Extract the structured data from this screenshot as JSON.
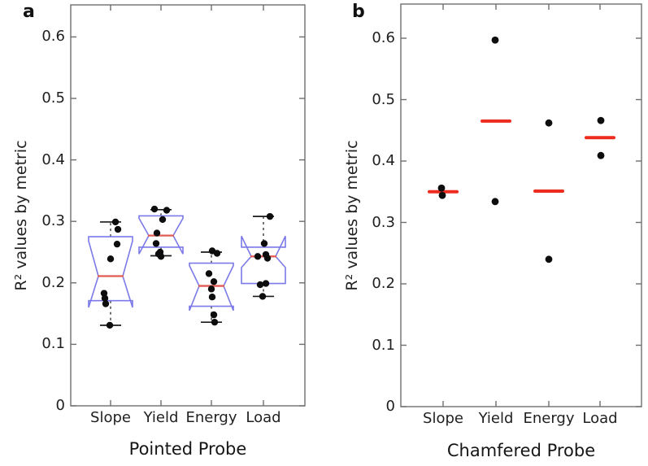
{
  "figure": {
    "background": "#ffffff"
  },
  "colors": {
    "axis": "#6e6e6e",
    "box_outline": "#7b7ae8",
    "box_median": "#e05c55",
    "scatter_median": "#ee2b1f",
    "data_point": "#0d0d0d",
    "text": "#1f1f1f"
  },
  "chart_data": [
    {
      "panel_label": "a",
      "type": "box",
      "title": "Pointed Probe",
      "ylabel": "R² values by metric",
      "ylim": [
        0,
        0.65
      ],
      "grid": false,
      "yticks": [
        0,
        0.1,
        0.2,
        0.3,
        0.4,
        0.5,
        0.6
      ],
      "ytick_labels": [
        "0",
        "0.1",
        "0.2",
        "0.3",
        "0.4",
        "0.5",
        "0.6"
      ],
      "categories": [
        "Slope",
        "Yield",
        "Energy",
        "Load"
      ],
      "boxes": [
        {
          "category": "Slope",
          "q1": 0.171,
          "median": 0.211,
          "q3": 0.275,
          "notch_lo": 0.16,
          "notch_hi": 0.268,
          "whisker_lo": 0.131,
          "whisker_hi": 0.299,
          "points": [
            {
              "v": 0.299,
              "dx": 6
            },
            {
              "v": 0.287,
              "dx": 9
            },
            {
              "v": 0.263,
              "dx": 8
            },
            {
              "v": 0.239,
              "dx": 0
            },
            {
              "v": 0.183,
              "dx": -8
            },
            {
              "v": 0.175,
              "dx": -7
            },
            {
              "v": 0.166,
              "dx": -6
            },
            {
              "v": 0.131,
              "dx": -1
            }
          ]
        },
        {
          "category": "Yield",
          "q1": 0.258,
          "median": 0.277,
          "q3": 0.309,
          "notch_lo": 0.247,
          "notch_hi": 0.305,
          "whisker_lo": 0.244,
          "whisker_hi": 0.319,
          "points": [
            {
              "v": 0.32,
              "dx": -8
            },
            {
              "v": 0.318,
              "dx": 7
            },
            {
              "v": 0.303,
              "dx": 2
            },
            {
              "v": 0.281,
              "dx": -5
            },
            {
              "v": 0.264,
              "dx": -6
            },
            {
              "v": 0.25,
              "dx": -1
            },
            {
              "v": 0.247,
              "dx": -3
            },
            {
              "v": 0.243,
              "dx": 0
            }
          ]
        },
        {
          "category": "Energy",
          "q1": 0.162,
          "median": 0.195,
          "q3": 0.232,
          "notch_lo": 0.155,
          "notch_hi": 0.228,
          "whisker_lo": 0.136,
          "whisker_hi": 0.25,
          "points": [
            {
              "v": 0.252,
              "dx": 1
            },
            {
              "v": 0.248,
              "dx": 7
            },
            {
              "v": 0.215,
              "dx": -3
            },
            {
              "v": 0.202,
              "dx": 3
            },
            {
              "v": 0.19,
              "dx": 0
            },
            {
              "v": 0.177,
              "dx": 1
            },
            {
              "v": 0.148,
              "dx": 3
            },
            {
              "v": 0.136,
              "dx": 4
            }
          ]
        },
        {
          "category": "Load",
          "q1": 0.199,
          "median": 0.243,
          "q3": 0.258,
          "notch_lo": 0.225,
          "notch_hi": 0.276,
          "whisker_lo": 0.178,
          "whisker_hi": 0.308,
          "points": [
            {
              "v": 0.308,
              "dx": 8
            },
            {
              "v": 0.264,
              "dx": 1
            },
            {
              "v": 0.246,
              "dx": 3
            },
            {
              "v": 0.243,
              "dx": -7
            },
            {
              "v": 0.24,
              "dx": 5
            },
            {
              "v": 0.199,
              "dx": 3
            },
            {
              "v": 0.197,
              "dx": -4
            },
            {
              "v": 0.178,
              "dx": -1
            }
          ]
        }
      ]
    },
    {
      "panel_label": "b",
      "type": "scatter-median",
      "title": "Chamfered Probe",
      "ylabel": "R² values by metric",
      "ylim": [
        0,
        0.65
      ],
      "grid": false,
      "yticks": [
        0,
        0.1,
        0.2,
        0.3,
        0.4,
        0.5,
        0.6
      ],
      "ytick_labels": [
        "0",
        "0.1",
        "0.2",
        "0.3",
        "0.4",
        "0.5",
        "0.6"
      ],
      "categories": [
        "Slope",
        "Yield",
        "Energy",
        "Load"
      ],
      "groups": [
        {
          "category": "Slope",
          "median": 0.35,
          "points": [
            {
              "v": 0.356,
              "dx": -2
            },
            {
              "v": 0.344,
              "dx": -1
            }
          ]
        },
        {
          "category": "Yield",
          "median": 0.465,
          "points": [
            {
              "v": 0.597,
              "dx": -1
            },
            {
              "v": 0.334,
              "dx": -1
            }
          ]
        },
        {
          "category": "Energy",
          "median": 0.351,
          "points": [
            {
              "v": 0.462,
              "dx": 0
            },
            {
              "v": 0.24,
              "dx": 0
            }
          ]
        },
        {
          "category": "Load",
          "median": 0.438,
          "points": [
            {
              "v": 0.466,
              "dx": 1
            },
            {
              "v": 0.409,
              "dx": 1
            }
          ]
        }
      ]
    }
  ]
}
